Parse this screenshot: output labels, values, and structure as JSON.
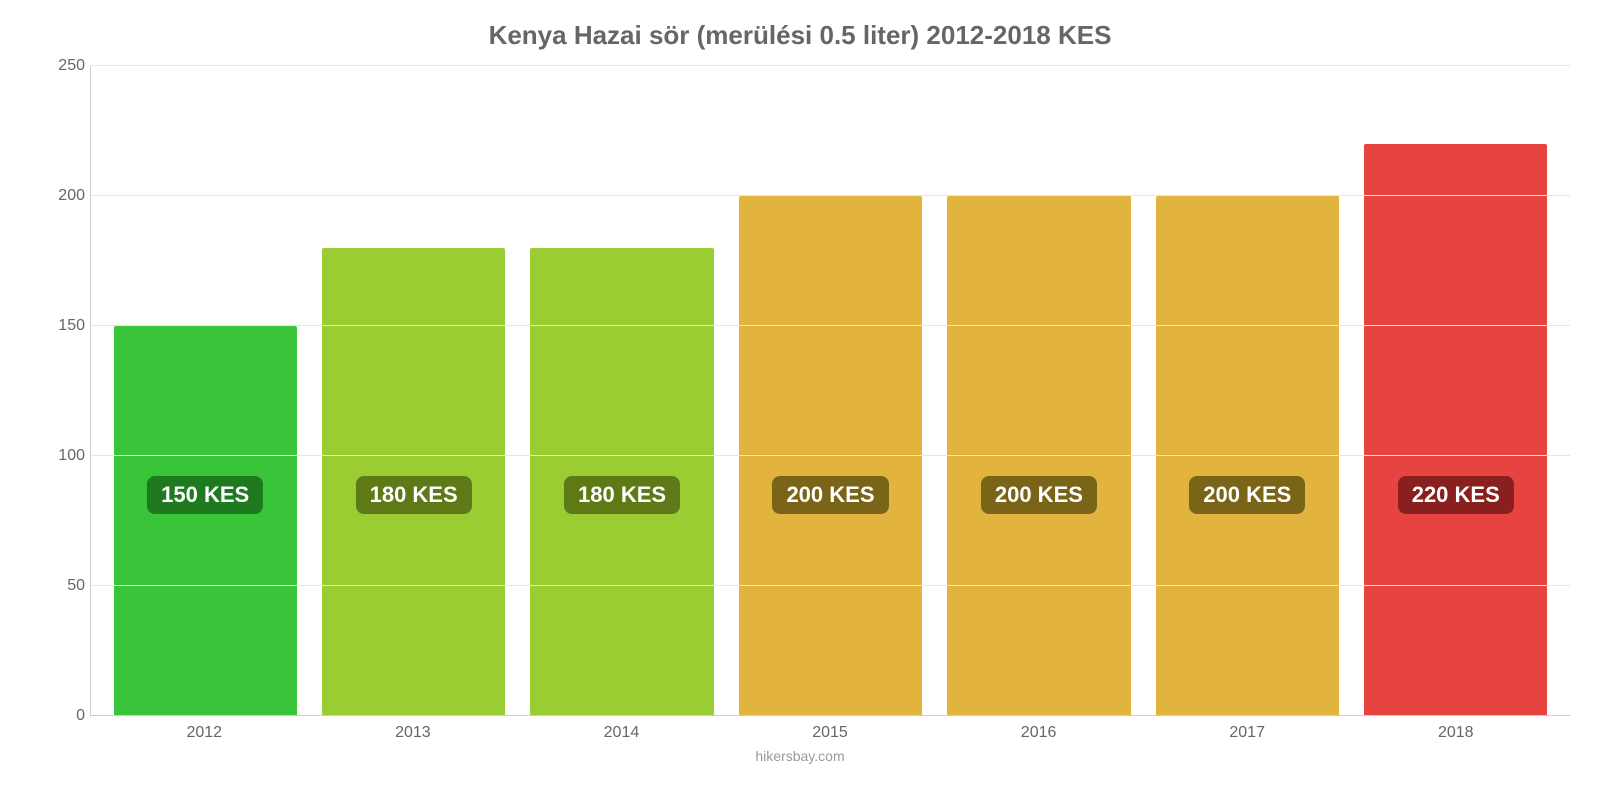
{
  "chart": {
    "type": "bar",
    "title": "Kenya Hazai sör (merülési 0.5 liter) 2012-2018 KES",
    "title_color": "#666666",
    "title_fontsize": 26,
    "background_color": "#ffffff",
    "ylim": [
      0,
      250
    ],
    "ytick_step": 50,
    "yticks": [
      0,
      50,
      100,
      150,
      200,
      250
    ],
    "axis_color": "#cccccc",
    "grid_color": "#e6e6e6",
    "tick_label_color": "#666666",
    "tick_fontsize": 16,
    "bar_width_pct": 88,
    "bar_label_fontsize": 22,
    "bar_label_y_value": 85,
    "categories": [
      "2012",
      "2013",
      "2014",
      "2015",
      "2016",
      "2017",
      "2018"
    ],
    "values": [
      150,
      180,
      180,
      200,
      200,
      200,
      220
    ],
    "value_labels": [
      "150 KES",
      "180 KES",
      "180 KES",
      "200 KES",
      "200 KES",
      "200 KES",
      "220 KES"
    ],
    "bar_colors": [
      "#3ac43a",
      "#9acd32",
      "#9acd32",
      "#e2b33d",
      "#e2b33d",
      "#e2b33d",
      "#e74340"
    ],
    "label_bg_colors": [
      "#1f7a1f",
      "#5e7a17",
      "#5e7a17",
      "#7a6417",
      "#7a6417",
      "#7a6417",
      "#8a1f1f"
    ],
    "credit": "hikersbay.com",
    "credit_color": "#999999"
  }
}
